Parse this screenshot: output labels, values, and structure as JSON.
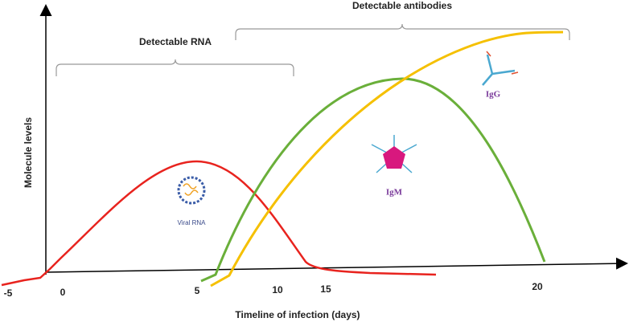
{
  "brackets": [
    {
      "label": "Detectable RNA"
    },
    {
      "label": "Detectable antibodies"
    }
  ],
  "axes": {
    "y_label": "Molecule levels",
    "x_label": "Timeline of infection (days)",
    "x_ticks": [
      "-5",
      "0",
      "5",
      "10",
      "15",
      "20"
    ]
  },
  "icons": [
    {
      "label": "Viral RNA"
    },
    {
      "label": "IgM"
    },
    {
      "label": "IgG"
    }
  ]
}
